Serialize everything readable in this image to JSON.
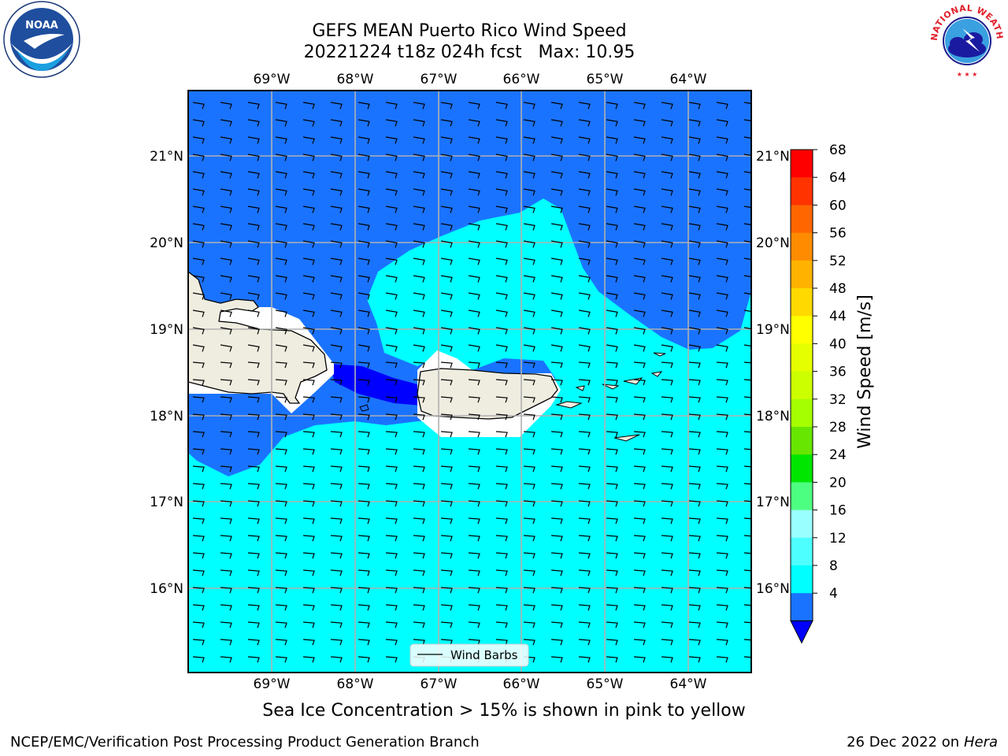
{
  "title": {
    "line1": "GEFS MEAN Puerto Rico Wind Speed",
    "line2": "20221224 t18z 024h fcst   Max: 10.95"
  },
  "map": {
    "lon_labels": [
      "69°W",
      "68°W",
      "67°W",
      "66°W",
      "65°W",
      "64°W"
    ],
    "lat_labels": [
      "21°N",
      "20°N",
      "19°N",
      "18°N",
      "17°N",
      "16°N"
    ],
    "legend_label": "Wind Barbs",
    "colors": {
      "speed_4_8": "#1a73ff",
      "speed_8_12": "#00ffff",
      "speed_below_4": "#0000ff",
      "land": "#efede0"
    }
  },
  "colorbar": {
    "label": "Wind Speed [m/s]",
    "ticks": [
      "68",
      "64",
      "60",
      "56",
      "52",
      "48",
      "44",
      "40",
      "36",
      "32",
      "28",
      "24",
      "20",
      "16",
      "12",
      "8",
      "4"
    ],
    "colors": [
      "#ff0000",
      "#ff3300",
      "#ff6600",
      "#ff8c00",
      "#ffb300",
      "#ffd900",
      "#ffff00",
      "#e6ff00",
      "#ccff00",
      "#a6ff00",
      "#66e600",
      "#00e600",
      "#4dff80",
      "#99ffff",
      "#4dffff",
      "#00ffff",
      "#1a73ff"
    ],
    "extend_color": "#0000ff"
  },
  "note": "Sea Ice Concentration > 15% is shown in pink to yellow",
  "footer": {
    "left": "NCEP/EMC/Verification Post Processing Product Generation Branch",
    "date": "26 Dec 2022 on",
    "host": "Hera"
  },
  "logos": {
    "noaa": "NOAA",
    "nws": "NATIONAL WEATHER SERVICE"
  }
}
